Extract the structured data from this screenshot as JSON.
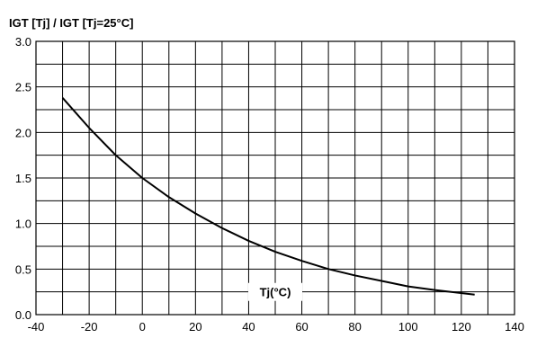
{
  "chart_data": {
    "type": "line",
    "title": "IGT [Tj] / IGT [Tj=25°C]",
    "xlabel": "Tj(°C)",
    "ylabel": "",
    "xlim": [
      -40,
      140
    ],
    "ylim": [
      0.0,
      3.0
    ],
    "xticks": [
      "-40",
      "-20",
      "0",
      "20",
      "40",
      "60",
      "80",
      "100",
      "120",
      "140"
    ],
    "yticks": [
      "0.0",
      "0.5",
      "1.0",
      "1.5",
      "2.0",
      "2.5",
      "3.0"
    ],
    "grid": true,
    "series": [
      {
        "x": [
          -30,
          -20,
          -10,
          0,
          10,
          20,
          30,
          40,
          50,
          60,
          70,
          80,
          90,
          100,
          110,
          125
        ],
        "y": [
          2.38,
          2.05,
          1.75,
          1.5,
          1.29,
          1.11,
          0.95,
          0.81,
          0.69,
          0.59,
          0.5,
          0.43,
          0.37,
          0.31,
          0.27,
          0.22
        ]
      }
    ],
    "line_color": "#000000"
  }
}
